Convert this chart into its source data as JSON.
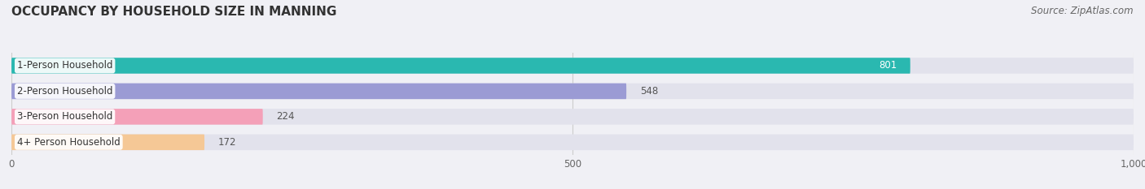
{
  "title": "OCCUPANCY BY HOUSEHOLD SIZE IN MANNING",
  "source": "Source: ZipAtlas.com",
  "categories": [
    "1-Person Household",
    "2-Person Household",
    "3-Person Household",
    "4+ Person Household"
  ],
  "values": [
    801,
    548,
    224,
    172
  ],
  "bar_colors": [
    "#2ab8b0",
    "#9b9bd4",
    "#f4a0b8",
    "#f5c896"
  ],
  "background_color": "#f0f0f5",
  "bar_bg_color": "#e2e2ec",
  "xlim_max": 1000,
  "title_fontsize": 11,
  "label_fontsize": 8.5,
  "source_fontsize": 8.5,
  "value_fontsize": 8.5,
  "bar_height": 0.62
}
